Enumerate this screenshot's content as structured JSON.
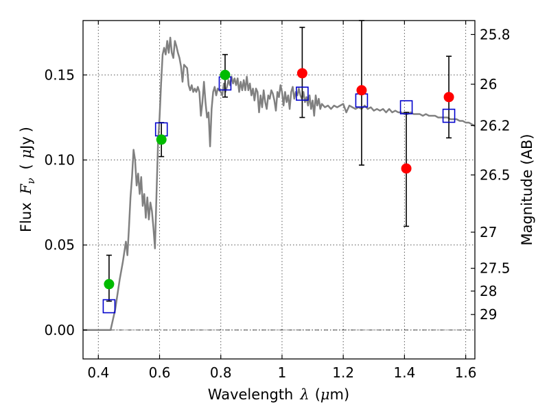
{
  "chart_data": {
    "type": "scatter",
    "xlabel": {
      "prefix": "Wavelength",
      "symbol": "λ",
      "unit_open": "(",
      "unit_mu": "μ",
      "unit_rest": "m)"
    },
    "ylabel": {
      "prefix": "Flux",
      "symbol": "F",
      "subscript": "ν",
      "unit_open": "(",
      "unit_mu": "μ",
      "unit_rest": "Jy",
      "unit_close": ")"
    },
    "y2label": "Magnitude (AB)",
    "xlim": [
      0.35,
      1.63
    ],
    "ylim": [
      -0.017,
      0.182
    ],
    "grid": true,
    "x_ticks": [
      {
        "value": 0.4,
        "label": "0.4"
      },
      {
        "value": 0.6,
        "label": "0.6"
      },
      {
        "value": 0.8,
        "label": "0.8"
      },
      {
        "value": 1.0,
        "label": "1"
      },
      {
        "value": 1.2,
        "label": "1.2"
      },
      {
        "value": 1.4,
        "label": "1.4"
      },
      {
        "value": 1.6,
        "label": "1.6"
      }
    ],
    "y_ticks": [
      {
        "value": 0.0,
        "label": "0.00"
      },
      {
        "value": 0.05,
        "label": "0.05"
      },
      {
        "value": 0.1,
        "label": "0.10"
      },
      {
        "value": 0.15,
        "label": "0.15"
      }
    ],
    "mag_ticks": [
      {
        "value": 25.8,
        "label": "25.8"
      },
      {
        "value": 26.0,
        "label": "26"
      },
      {
        "value": 26.2,
        "label": "26.2"
      },
      {
        "value": 26.5,
        "label": "26.5"
      },
      {
        "value": 27.0,
        "label": "27"
      },
      {
        "value": 27.5,
        "label": "27.5"
      },
      {
        "value": 28.0,
        "label": "28"
      },
      {
        "value": 29.0,
        "label": "29"
      }
    ],
    "colors": {
      "model": "#808080",
      "photometry_green": "#00bb00",
      "photometry_red": "#ff0000",
      "model_band": "#0000cc",
      "error_bar": "#000000",
      "grid": "#555555"
    },
    "model_spectrum": [
      [
        0.35,
        0.0
      ],
      [
        0.43,
        0.0
      ],
      [
        0.44,
        0.0
      ],
      [
        0.455,
        0.012
      ],
      [
        0.47,
        0.03
      ],
      [
        0.48,
        0.04
      ],
      [
        0.49,
        0.052
      ],
      [
        0.495,
        0.044
      ],
      [
        0.5,
        0.06
      ],
      [
        0.505,
        0.078
      ],
      [
        0.51,
        0.09
      ],
      [
        0.515,
        0.106
      ],
      [
        0.52,
        0.1
      ],
      [
        0.525,
        0.085
      ],
      [
        0.53,
        0.092
      ],
      [
        0.535,
        0.08
      ],
      [
        0.54,
        0.09
      ],
      [
        0.545,
        0.073
      ],
      [
        0.55,
        0.08
      ],
      [
        0.555,
        0.066
      ],
      [
        0.56,
        0.078
      ],
      [
        0.565,
        0.065
      ],
      [
        0.57,
        0.075
      ],
      [
        0.575,
        0.07
      ],
      [
        0.58,
        0.06
      ],
      [
        0.585,
        0.048
      ],
      [
        0.59,
        0.08
      ],
      [
        0.595,
        0.11
      ],
      [
        0.6,
        0.125
      ],
      [
        0.605,
        0.145
      ],
      [
        0.61,
        0.162
      ],
      [
        0.615,
        0.166
      ],
      [
        0.62,
        0.162
      ],
      [
        0.625,
        0.17
      ],
      [
        0.63,
        0.163
      ],
      [
        0.635,
        0.172
      ],
      [
        0.64,
        0.163
      ],
      [
        0.645,
        0.16
      ],
      [
        0.65,
        0.17
      ],
      [
        0.655,
        0.167
      ],
      [
        0.66,
        0.163
      ],
      [
        0.665,
        0.16
      ],
      [
        0.67,
        0.155
      ],
      [
        0.675,
        0.146
      ],
      [
        0.68,
        0.156
      ],
      [
        0.685,
        0.155
      ],
      [
        0.69,
        0.154
      ],
      [
        0.695,
        0.144
      ],
      [
        0.7,
        0.141
      ],
      [
        0.705,
        0.144
      ],
      [
        0.71,
        0.14
      ],
      [
        0.715,
        0.142
      ],
      [
        0.72,
        0.14
      ],
      [
        0.725,
        0.143
      ],
      [
        0.73,
        0.14
      ],
      [
        0.735,
        0.126
      ],
      [
        0.74,
        0.134
      ],
      [
        0.745,
        0.146
      ],
      [
        0.75,
        0.134
      ],
      [
        0.755,
        0.125
      ],
      [
        0.76,
        0.128
      ],
      [
        0.765,
        0.108
      ],
      [
        0.77,
        0.13
      ],
      [
        0.775,
        0.14
      ],
      [
        0.78,
        0.143
      ],
      [
        0.785,
        0.138
      ],
      [
        0.79,
        0.142
      ],
      [
        0.8,
        0.14
      ],
      [
        0.805,
        0.138
      ],
      [
        0.81,
        0.145
      ],
      [
        0.815,
        0.14
      ],
      [
        0.82,
        0.143
      ],
      [
        0.825,
        0.147
      ],
      [
        0.83,
        0.144
      ],
      [
        0.835,
        0.149
      ],
      [
        0.84,
        0.145
      ],
      [
        0.845,
        0.148
      ],
      [
        0.85,
        0.144
      ],
      [
        0.855,
        0.148
      ],
      [
        0.86,
        0.14
      ],
      [
        0.865,
        0.146
      ],
      [
        0.87,
        0.141
      ],
      [
        0.875,
        0.147
      ],
      [
        0.88,
        0.141
      ],
      [
        0.885,
        0.149
      ],
      [
        0.89,
        0.141
      ],
      [
        0.895,
        0.145
      ],
      [
        0.9,
        0.138
      ],
      [
        0.905,
        0.142
      ],
      [
        0.91,
        0.135
      ],
      [
        0.915,
        0.142
      ],
      [
        0.92,
        0.14
      ],
      [
        0.925,
        0.128
      ],
      [
        0.93,
        0.138
      ],
      [
        0.935,
        0.131
      ],
      [
        0.94,
        0.141
      ],
      [
        0.945,
        0.134
      ],
      [
        0.95,
        0.13
      ],
      [
        0.955,
        0.138
      ],
      [
        0.96,
        0.136
      ],
      [
        0.965,
        0.141
      ],
      [
        0.97,
        0.139
      ],
      [
        0.975,
        0.135
      ],
      [
        0.98,
        0.129
      ],
      [
        0.985,
        0.14
      ],
      [
        0.99,
        0.137
      ],
      [
        0.995,
        0.144
      ],
      [
        1.0,
        0.14
      ],
      [
        1.005,
        0.132
      ],
      [
        1.01,
        0.14
      ],
      [
        1.015,
        0.134
      ],
      [
        1.02,
        0.138
      ],
      [
        1.025,
        0.13
      ],
      [
        1.03,
        0.14
      ],
      [
        1.035,
        0.143
      ],
      [
        1.04,
        0.136
      ],
      [
        1.045,
        0.14
      ],
      [
        1.05,
        0.138
      ],
      [
        1.055,
        0.142
      ],
      [
        1.06,
        0.138
      ],
      [
        1.065,
        0.136
      ],
      [
        1.07,
        0.14
      ],
      [
        1.075,
        0.134
      ],
      [
        1.08,
        0.137
      ],
      [
        1.085,
        0.132
      ],
      [
        1.09,
        0.138
      ],
      [
        1.095,
        0.13
      ],
      [
        1.1,
        0.135
      ],
      [
        1.105,
        0.126
      ],
      [
        1.11,
        0.138
      ],
      [
        1.115,
        0.132
      ],
      [
        1.12,
        0.136
      ],
      [
        1.125,
        0.13
      ],
      [
        1.13,
        0.133
      ],
      [
        1.14,
        0.131
      ],
      [
        1.15,
        0.132
      ],
      [
        1.16,
        0.13
      ],
      [
        1.17,
        0.132
      ],
      [
        1.18,
        0.131
      ],
      [
        1.19,
        0.132
      ],
      [
        1.2,
        0.133
      ],
      [
        1.21,
        0.128
      ],
      [
        1.22,
        0.132
      ],
      [
        1.23,
        0.131
      ],
      [
        1.24,
        0.13
      ],
      [
        1.25,
        0.131
      ],
      [
        1.26,
        0.13
      ],
      [
        1.27,
        0.132
      ],
      [
        1.28,
        0.13
      ],
      [
        1.29,
        0.131
      ],
      [
        1.3,
        0.129
      ],
      [
        1.31,
        0.13
      ],
      [
        1.32,
        0.129
      ],
      [
        1.33,
        0.13
      ],
      [
        1.34,
        0.128
      ],
      [
        1.35,
        0.13
      ],
      [
        1.36,
        0.128
      ],
      [
        1.37,
        0.129
      ],
      [
        1.38,
        0.128
      ],
      [
        1.39,
        0.128
      ],
      [
        1.4,
        0.127
      ],
      [
        1.41,
        0.127
      ],
      [
        1.42,
        0.128
      ],
      [
        1.43,
        0.127
      ],
      [
        1.44,
        0.127
      ],
      [
        1.45,
        0.127
      ],
      [
        1.46,
        0.126
      ],
      [
        1.47,
        0.127
      ],
      [
        1.48,
        0.126
      ],
      [
        1.49,
        0.126
      ],
      [
        1.5,
        0.126
      ],
      [
        1.51,
        0.125
      ],
      [
        1.52,
        0.125
      ],
      [
        1.53,
        0.125
      ],
      [
        1.54,
        0.125
      ],
      [
        1.55,
        0.124
      ],
      [
        1.56,
        0.124
      ],
      [
        1.57,
        0.124
      ],
      [
        1.58,
        0.123
      ],
      [
        1.59,
        0.123
      ],
      [
        1.6,
        0.122
      ],
      [
        1.61,
        0.122
      ],
      [
        1.62,
        0.121
      ],
      [
        1.63,
        0.12
      ]
    ],
    "model_bands": [
      {
        "x": 0.435,
        "y": 0.014
      },
      {
        "x": 0.606,
        "y": 0.118
      },
      {
        "x": 0.814,
        "y": 0.145
      },
      {
        "x": 1.066,
        "y": 0.139
      },
      {
        "x": 1.26,
        "y": 0.135
      },
      {
        "x": 1.406,
        "y": 0.131
      },
      {
        "x": 1.545,
        "y": 0.126
      }
    ],
    "photometry": [
      {
        "x": 0.435,
        "y": 0.027,
        "yerr": [
          0.017,
          0.044
        ],
        "color": "green"
      },
      {
        "x": 0.606,
        "y": 0.112,
        "yerr": [
          0.102,
          0.122
        ],
        "color": "green"
      },
      {
        "x": 0.814,
        "y": 0.15,
        "yerr": [
          0.137,
          0.162
        ],
        "color": "green"
      },
      {
        "x": 1.066,
        "y": 0.151,
        "yerr": [
          0.125,
          0.178
        ],
        "color": "red"
      },
      {
        "x": 1.26,
        "y": 0.141,
        "yerr": [
          0.097,
          0.182
        ],
        "color": "red"
      },
      {
        "x": 1.406,
        "y": 0.095,
        "yerr": [
          0.061,
          0.128
        ],
        "color": "red"
      },
      {
        "x": 1.545,
        "y": 0.137,
        "yerr": [
          0.113,
          0.161
        ],
        "color": "red"
      }
    ]
  }
}
